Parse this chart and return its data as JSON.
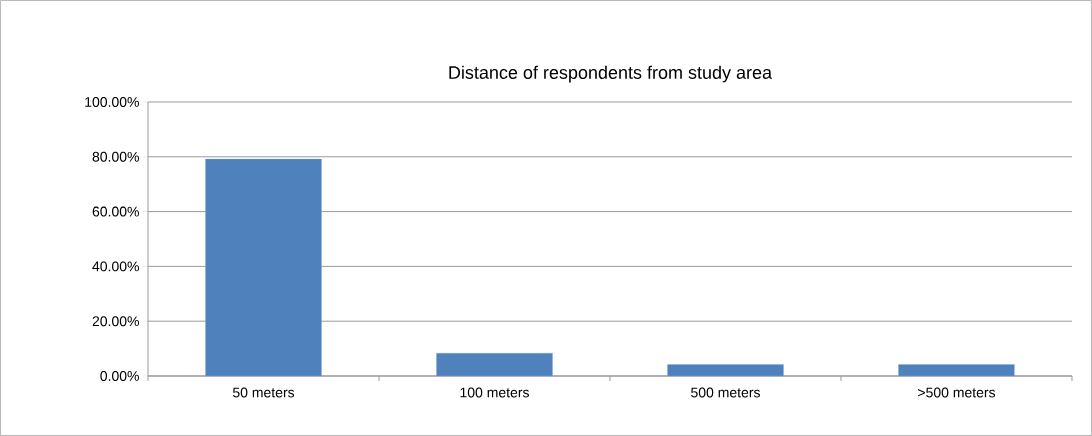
{
  "chart_data": {
    "type": "bar",
    "title": "Distance of respondents from study area",
    "categories": [
      "50 meters",
      "100 meters",
      "500 meters",
      ">500 meters"
    ],
    "values": [
      79.2,
      8.3,
      4.2,
      4.2
    ],
    "color": "#4f81bd",
    "ylim": [
      0,
      100
    ],
    "yticks": [
      {
        "value": 0,
        "label": "0.00%"
      },
      {
        "value": 20,
        "label": "20.00%"
      },
      {
        "value": 40,
        "label": "40.00%"
      },
      {
        "value": 60,
        "label": "60.00%"
      },
      {
        "value": 80,
        "label": "80.00%"
      },
      {
        "value": 100,
        "label": "100.00%"
      }
    ],
    "grid": "y"
  }
}
